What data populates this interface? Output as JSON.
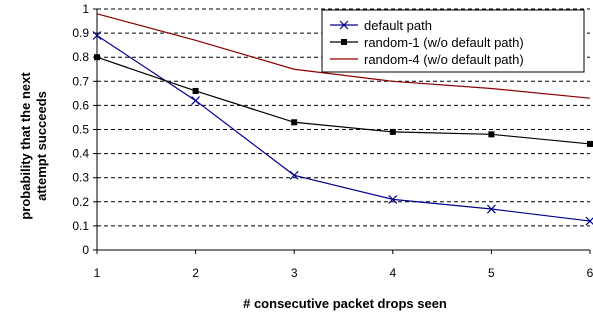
{
  "chart_data": {
    "type": "line",
    "xlabel": "# consecutive packet drops seen",
    "ylabel_lines": [
      "probability that the next",
      "attempt succeeds"
    ],
    "x": [
      1,
      2,
      3,
      4,
      5,
      6
    ],
    "xlim": [
      1,
      6
    ],
    "ylim": [
      0,
      1
    ],
    "x_ticks": [
      "1",
      "2",
      "3",
      "4",
      "5",
      "6"
    ],
    "y_ticks": [
      "0",
      "0.1",
      "0.2",
      "0.3",
      "0.4",
      "0.5",
      "0.6",
      "0.7",
      "0.8",
      "0.9",
      "1"
    ],
    "grid": "horizontal dashed",
    "legend_position": "top-right",
    "series": [
      {
        "name": "default path",
        "values": [
          0.89,
          0.62,
          0.31,
          0.21,
          0.17,
          0.12
        ],
        "color": "#00008B",
        "marker": "x"
      },
      {
        "name": "random-1 (w/o default path)",
        "values": [
          0.8,
          0.66,
          0.53,
          0.49,
          0.48,
          0.44
        ],
        "color": "#000000",
        "marker": "square"
      },
      {
        "name": "random-4 (w/o default path)",
        "values": [
          0.98,
          0.87,
          0.75,
          0.7,
          0.67,
          0.63
        ],
        "color": "#8B0000",
        "marker": "none"
      }
    ]
  }
}
